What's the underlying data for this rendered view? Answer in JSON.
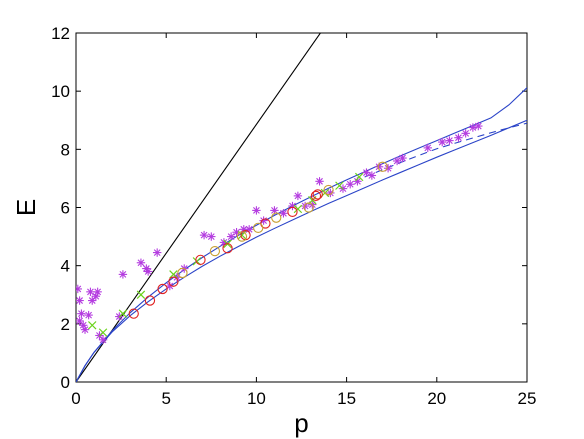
{
  "chart_data": {
    "type": "scatter",
    "xlabel": "p",
    "ylabel": "E",
    "xlim": [
      0,
      25
    ],
    "ylim": [
      0,
      12
    ],
    "xticks": [
      0,
      5,
      10,
      15,
      20,
      25
    ],
    "yticks": [
      0,
      2,
      4,
      6,
      8,
      10,
      12
    ],
    "grid": false,
    "series": [
      {
        "kind": "line",
        "style": "solid",
        "color": "#000000",
        "x": [
          0,
          14
        ],
        "y": [
          0,
          12.4
        ]
      },
      {
        "kind": "line",
        "style": "solid",
        "color": "#2b44c8",
        "x": [
          0,
          0.5,
          1,
          2,
          3,
          4,
          5,
          6,
          7,
          8,
          9,
          10,
          11,
          12,
          13,
          14,
          15,
          16,
          17,
          18,
          19,
          20,
          21,
          22,
          23,
          24,
          25
        ],
        "y": [
          0,
          0.56,
          1.02,
          1.72,
          2.28,
          2.76,
          3.2,
          3.6,
          3.98,
          4.33,
          4.66,
          4.98,
          5.28,
          5.57,
          5.86,
          6.14,
          6.41,
          6.68,
          6.95,
          7.21,
          7.47,
          7.73,
          7.98,
          8.23,
          8.48,
          8.74,
          9.0
        ]
      },
      {
        "kind": "line",
        "style": "solid",
        "color": "#2b44c8",
        "x": [
          0,
          0.5,
          1,
          2,
          3,
          4,
          5,
          6,
          7,
          8,
          9,
          10,
          11,
          12,
          13,
          14,
          15,
          16,
          17,
          18,
          19,
          20,
          21,
          22,
          23,
          24,
          25
        ],
        "y": [
          0,
          0.56,
          1.02,
          1.76,
          2.38,
          2.92,
          3.41,
          3.86,
          4.28,
          4.67,
          5.04,
          5.39,
          5.73,
          6.05,
          6.36,
          6.66,
          6.95,
          7.23,
          7.51,
          7.78,
          8.04,
          8.3,
          8.56,
          8.82,
          9.08,
          9.53,
          10.12
        ]
      },
      {
        "kind": "line",
        "style": "dashed",
        "color": "#2b44c8",
        "x": [
          16,
          17,
          18,
          19,
          20,
          21,
          22,
          23,
          24,
          25
        ],
        "y": [
          7.05,
          7.3,
          7.55,
          7.79,
          8.02,
          8.21,
          8.39,
          8.57,
          8.74,
          8.9
        ]
      },
      {
        "kind": "marker",
        "marker": "asterisk",
        "color": "#b43ce0",
        "x": [
          0.1,
          0.2,
          0.2,
          0.3,
          0.4,
          0.5,
          0.7,
          0.8,
          0.9,
          1.1,
          1.2,
          1.3,
          1.5,
          2.4,
          2.6,
          3.6,
          3.9,
          4.0,
          4.5,
          5.2,
          5.6,
          6.0,
          7.1,
          7.5,
          8.2,
          8.6,
          8.9,
          9.3,
          9.6,
          10.0,
          10.4,
          11.0,
          11.5,
          12.0,
          12.3,
          12.7,
          13.1,
          13.5,
          14.1,
          14.8,
          15.2,
          15.6,
          16.1,
          16.4,
          16.8,
          17.3,
          17.8,
          18.1,
          19.5,
          20.3,
          20.7,
          21.2,
          21.6,
          22.0,
          22.3
        ],
        "y": [
          3.2,
          2.8,
          2.1,
          2.35,
          1.95,
          1.8,
          2.3,
          3.1,
          2.8,
          2.95,
          3.1,
          1.6,
          1.45,
          2.25,
          3.7,
          4.1,
          3.9,
          3.8,
          4.45,
          3.3,
          3.6,
          3.9,
          5.05,
          5.0,
          4.8,
          5.0,
          5.15,
          5.25,
          5.25,
          5.9,
          5.55,
          5.9,
          5.8,
          6.05,
          6.4,
          6.05,
          6.1,
          6.9,
          6.5,
          6.65,
          6.8,
          6.9,
          7.2,
          7.1,
          7.4,
          7.35,
          7.6,
          7.7,
          8.05,
          8.25,
          8.3,
          8.4,
          8.55,
          8.75,
          8.8
        ]
      },
      {
        "kind": "marker",
        "marker": "x",
        "color": "#6ad21a",
        "x": [
          0.9,
          1.5,
          2.6,
          3.6,
          5.4,
          6.7,
          8.4,
          9.2,
          12.3,
          13.1,
          13.8,
          14.6,
          15.7
        ],
        "y": [
          1.95,
          1.7,
          2.35,
          3.0,
          3.7,
          4.15,
          4.75,
          5.05,
          5.95,
          6.25,
          6.5,
          6.75,
          7.05
        ]
      },
      {
        "kind": "marker",
        "marker": "circle",
        "color": "#e02020",
        "x": [
          3.2,
          4.1,
          4.8,
          5.4,
          6.9,
          8.4,
          9.4,
          10.5,
          12.0,
          13.3,
          13.4
        ],
        "y": [
          2.35,
          2.8,
          3.2,
          3.45,
          4.2,
          4.6,
          5.05,
          5.45,
          5.85,
          6.4,
          6.45
        ]
      },
      {
        "kind": "marker",
        "marker": "circle",
        "color": "#c8a032",
        "x": [
          5.9,
          7.7,
          9.2,
          10.1,
          11.1,
          12.9,
          14.0,
          17.0
        ],
        "y": [
          3.75,
          4.5,
          5.0,
          5.3,
          5.65,
          6.0,
          6.6,
          7.4
        ]
      }
    ]
  }
}
